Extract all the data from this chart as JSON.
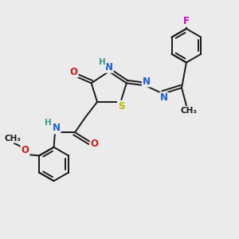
{
  "bg_color": "#ebebeb",
  "bond_color": "#1a1a1a",
  "bond_width": 1.4,
  "atom_colors": {
    "N": "#1a5fcc",
    "O": "#cc1a1a",
    "S": "#b8b800",
    "F": "#cc00cc",
    "H": "#3a9a8a",
    "C": "#1a1a1a"
  },
  "font_size": 8.5,
  "fig_bg": "#ebebeb"
}
